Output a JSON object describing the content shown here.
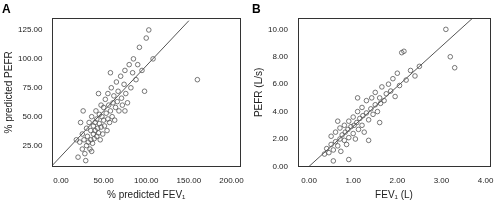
{
  "chart_data": [
    {
      "type": "scatter",
      "title": "A",
      "x_label": "% predicted FEV₁",
      "y_label": "% predicted PEFR",
      "xlim": [
        -10,
        210
      ],
      "xticks": [
        {
          "value": 0,
          "label": "0.00"
        },
        {
          "value": 50,
          "label": "50.00"
        },
        {
          "value": 100,
          "label": "100.00"
        },
        {
          "value": 150,
          "label": "150.00"
        },
        {
          "value": 200,
          "label": "200.00"
        }
      ],
      "ylim": [
        7,
        135
      ],
      "yticks": [
        {
          "value": 25,
          "label": "25.00"
        },
        {
          "value": 50,
          "label": "50.00"
        },
        {
          "value": 75,
          "label": "75.00"
        },
        {
          "value": 100,
          "label": "100.00"
        },
        {
          "value": 125,
          "label": "125.00"
        }
      ],
      "grid": false,
      "series": [
        {
          "type": "scatter",
          "marker": "circle",
          "color": "#555555",
          "x": [
            20,
            22,
            25,
            25,
            27,
            28,
            30,
            30,
            31,
            32,
            33,
            34,
            35,
            35,
            36,
            37,
            38,
            38,
            39,
            40,
            40,
            41,
            42,
            42,
            43,
            44,
            45,
            45,
            46,
            47,
            47,
            48,
            49,
            50,
            50,
            51,
            52,
            53,
            54,
            55,
            55,
            56,
            57,
            58,
            59,
            60,
            61,
            62,
            63,
            64,
            65,
            66,
            67,
            68,
            70,
            71,
            72,
            74,
            75,
            76,
            78,
            80,
            82,
            84,
            85,
            88,
            90,
            92,
            95,
            100,
            103,
            108,
            160,
            18,
            23,
            26,
            29,
            44,
            36,
            58,
            75,
            98
          ],
          "y": [
            15,
            28,
            22,
            35,
            30,
            18,
            25,
            40,
            33,
            28,
            45,
            22,
            38,
            30,
            50,
            27,
            35,
            42,
            31,
            45,
            38,
            55,
            33,
            48,
            40,
            36,
            52,
            44,
            30,
            60,
            41,
            50,
            35,
            47,
            58,
            42,
            65,
            53,
            38,
            48,
            70,
            60,
            45,
            55,
            75,
            50,
            62,
            68,
            47,
            58,
            80,
            63,
            72,
            55,
            85,
            66,
            60,
            78,
            90,
            70,
            62,
            95,
            75,
            88,
            100,
            82,
            95,
            110,
            90,
            118,
            125,
            100,
            82,
            30,
            45,
            55,
            12,
            70,
            20,
            88,
            55,
            72
          ]
        },
        {
          "type": "line",
          "line_style": "solid",
          "color": "#555555",
          "x": [
            -10,
            150
          ],
          "y": [
            8,
            133
          ]
        }
      ]
    },
    {
      "type": "scatter",
      "title": "B",
      "x_label": "FEV₁ (L)",
      "y_label": "PEFR (L/s)",
      "xlim": [
        -0.25,
        4.1
      ],
      "xticks": [
        {
          "value": 0,
          "label": "0.00"
        },
        {
          "value": 1,
          "label": "1.00"
        },
        {
          "value": 2,
          "label": "2.00"
        },
        {
          "value": 3,
          "label": "3.00"
        },
        {
          "value": 4,
          "label": "4.00"
        }
      ],
      "ylim": [
        0,
        10.8
      ],
      "yticks": [
        {
          "value": 0,
          "label": "0.00"
        },
        {
          "value": 2,
          "label": "2.00"
        },
        {
          "value": 4,
          "label": "4.00"
        },
        {
          "value": 6,
          "label": "6.00"
        },
        {
          "value": 8,
          "label": "8.00"
        },
        {
          "value": 10,
          "label": "10.00"
        }
      ],
      "grid": false,
      "series": [
        {
          "type": "scatter",
          "marker": "circle",
          "color": "#555555",
          "x": [
            0.35,
            0.4,
            0.45,
            0.5,
            0.5,
            0.55,
            0.6,
            0.6,
            0.65,
            0.7,
            0.7,
            0.72,
            0.75,
            0.8,
            0.8,
            0.82,
            0.85,
            0.88,
            0.9,
            0.9,
            0.95,
            1.0,
            1.0,
            1.02,
            1.05,
            1.08,
            1.1,
            1.12,
            1.15,
            1.2,
            1.2,
            1.22,
            1.25,
            1.3,
            1.3,
            1.35,
            1.4,
            1.42,
            1.45,
            1.5,
            1.5,
            1.55,
            1.6,
            1.62,
            1.65,
            1.7,
            1.75,
            1.8,
            1.85,
            1.9,
            1.95,
            2.0,
            2.05,
            2.1,
            2.15,
            2.2,
            2.3,
            2.4,
            2.5,
            3.1,
            3.2,
            3.3,
            0.55,
            0.9,
            1.35,
            0.65,
            1.1,
            1.6
          ],
          "y": [
            0.9,
            1.3,
            1.0,
            1.6,
            2.2,
            1.2,
            1.8,
            2.5,
            1.5,
            2.0,
            2.8,
            1.1,
            2.3,
            1.9,
            3.0,
            2.5,
            1.6,
            2.7,
            3.3,
            2.1,
            2.9,
            2.4,
            3.6,
            3.0,
            2.0,
            3.2,
            4.0,
            2.7,
            3.5,
            3.0,
            4.3,
            3.7,
            2.5,
            3.9,
            4.8,
            3.4,
            4.2,
            5.0,
            3.8,
            4.5,
            5.4,
            4.0,
            5.0,
            4.6,
            5.8,
            4.8,
            5.3,
            6.0,
            5.5,
            6.4,
            5.1,
            6.8,
            5.9,
            8.3,
            8.4,
            6.3,
            7.0,
            6.6,
            7.3,
            10.0,
            8.0,
            7.2,
            0.4,
            0.5,
            1.9,
            3.3,
            5.0,
            3.2
          ]
        },
        {
          "type": "line",
          "line_style": "solid",
          "color": "#555555",
          "x": [
            0,
            3.7
          ],
          "y": [
            0,
            10.8
          ]
        }
      ]
    }
  ]
}
